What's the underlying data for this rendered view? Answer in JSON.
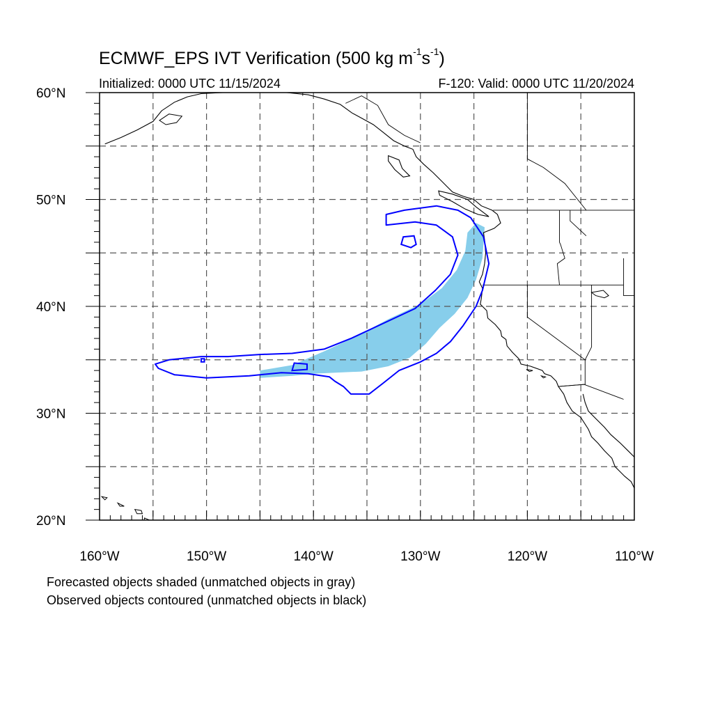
{
  "title": {
    "main": "ECMWF_EPS IVT Verification (500 kg m",
    "exp1": "-1",
    "mid": "s",
    "exp2": "-1",
    "end": ")"
  },
  "subtitle_left": "Initialized: 0000 UTC 11/15/2024",
  "subtitle_right": "F-120: Valid: 0000 UTC 11/20/2024",
  "lat_labels": [
    "20°N",
    "30°N",
    "40°N",
    "50°N",
    "60°N"
  ],
  "lon_labels": [
    "160°W",
    "150°W",
    "140°W",
    "130°W",
    "120°W",
    "110°W"
  ],
  "notes": [
    "Forecasted objects shaded (unmatched objects in gray)",
    "Observed objects contoured (unmatched objects in black)"
  ],
  "colors": {
    "forecast_fill": "#87ceeb",
    "observed_contour": "#0000ff",
    "coastline": "#000000",
    "grid": "#555555"
  },
  "map_data": {
    "extent": {
      "lon": [
        -160,
        -110
      ],
      "lat": [
        20,
        60
      ]
    },
    "grid_lon": [
      -155,
      -150,
      -145,
      -140,
      -135,
      -130,
      -125,
      -120,
      -115
    ],
    "grid_lat": [
      25,
      30,
      35,
      40,
      45,
      50,
      55
    ],
    "forecast_object": [
      [
        -145,
        34
      ],
      [
        -142,
        34.5
      ],
      [
        -139,
        35.8
      ],
      [
        -136,
        37.2
      ],
      [
        -133,
        38.8
      ],
      [
        -130,
        40.2
      ],
      [
        -128,
        41.7
      ],
      [
        -126.6,
        43.4
      ],
      [
        -125.8,
        45.2
      ],
      [
        -125.6,
        46.9
      ],
      [
        -124.8,
        47.8
      ],
      [
        -124,
        47.4
      ],
      [
        -124.2,
        44.5
      ],
      [
        -124.8,
        42.5
      ],
      [
        -125.6,
        40.8
      ],
      [
        -126.8,
        39.3
      ],
      [
        -128.2,
        38.0
      ],
      [
        -129.5,
        36.5
      ],
      [
        -131,
        35.2
      ],
      [
        -133,
        34.4
      ],
      [
        -135.5,
        33.9
      ],
      [
        -138,
        33.8
      ],
      [
        -140,
        33.7
      ],
      [
        -142,
        33.5
      ],
      [
        -145,
        33.3
      ]
    ],
    "observed_object": [
      [
        -154.8,
        34.6
      ],
      [
        -153.5,
        35.0
      ],
      [
        -150.5,
        35.3
      ],
      [
        -148,
        35.3
      ],
      [
        -145,
        35.5
      ],
      [
        -142,
        35.6
      ],
      [
        -139,
        36.0
      ],
      [
        -136.5,
        37.0
      ],
      [
        -133.5,
        38.4
      ],
      [
        -130.5,
        39.8
      ],
      [
        -128.6,
        41.5
      ],
      [
        -127.2,
        43.0
      ],
      [
        -126.5,
        44.8
      ],
      [
        -127,
        46.5
      ],
      [
        -128.5,
        47.6
      ],
      [
        -130.5,
        47.9
      ],
      [
        -133.2,
        47.6
      ],
      [
        -133.2,
        48.6
      ],
      [
        -131.5,
        49.0
      ],
      [
        -128.5,
        49.4
      ],
      [
        -126.5,
        49.0
      ],
      [
        -125.3,
        48.3
      ],
      [
        -124.1,
        46.5
      ],
      [
        -123.6,
        44.0
      ],
      [
        -124.2,
        41.5
      ],
      [
        -124.8,
        40.0
      ],
      [
        -126.0,
        38.2
      ],
      [
        -127.2,
        36.7
      ],
      [
        -128.5,
        35.6
      ],
      [
        -130,
        34.8
      ],
      [
        -132,
        34.0
      ],
      [
        -133.5,
        32.8
      ],
      [
        -134.8,
        31.8
      ],
      [
        -136.5,
        31.8
      ],
      [
        -137.2,
        32.5
      ],
      [
        -138,
        33.0
      ],
      [
        -138.5,
        33.4
      ],
      [
        -140.5,
        33.7
      ],
      [
        -143,
        33.8
      ],
      [
        -146,
        33.5
      ],
      [
        -150,
        33.3
      ],
      [
        -153,
        33.6
      ],
      [
        -154.5,
        34.2
      ]
    ],
    "observed_inner_1": [
      [
        -130.9,
        45.5
      ],
      [
        -131.8,
        45.8
      ],
      [
        -131.6,
        46.5
      ],
      [
        -130.6,
        46.6
      ],
      [
        -130.4,
        45.8
      ]
    ],
    "observed_inner_2": [
      [
        -142,
        34.0
      ],
      [
        -140.6,
        34.1
      ],
      [
        -140.6,
        34.6
      ],
      [
        -141.8,
        34.7
      ]
    ],
    "observed_inner_3": [
      [
        -150.5,
        34.8
      ],
      [
        -150.2,
        34.8
      ],
      [
        -150.2,
        35.1
      ],
      [
        -150.5,
        35.1
      ]
    ],
    "coastline": [
      [
        -159.5,
        55.2
      ],
      [
        -158,
        55.8
      ],
      [
        -156.5,
        56.5
      ],
      [
        -155,
        57.3
      ],
      [
        -154.2,
        58.3
      ],
      [
        -153,
        59.1
      ],
      [
        -151.8,
        59.6
      ],
      [
        -150.5,
        59.9
      ],
      [
        -148.5,
        60.0
      ],
      [
        -146.5,
        60.5
      ],
      [
        -144.5,
        60.3
      ],
      [
        -142.5,
        60.0
      ],
      [
        -140.5,
        59.8
      ],
      [
        -139,
        59.4
      ],
      [
        -137.5,
        58.9
      ],
      [
        -136.4,
        58.1
      ],
      [
        -135.3,
        57.5
      ],
      [
        -134.4,
        57.0
      ],
      [
        -133.5,
        56.3
      ],
      [
        -132.5,
        55.5
      ],
      [
        -131.5,
        55.0
      ],
      [
        -130.7,
        54.7
      ],
      [
        -130.4,
        54.0
      ],
      [
        -129.7,
        53.3
      ],
      [
        -128.8,
        52.5
      ],
      [
        -128.1,
        51.8
      ],
      [
        -127.5,
        51.2
      ],
      [
        -127.0,
        50.7
      ],
      [
        -126.0,
        50.3
      ],
      [
        -125.0,
        50.0
      ],
      [
        -124.3,
        49.4
      ],
      [
        -123.3,
        49.0
      ],
      [
        -122.8,
        48.6
      ],
      [
        -122.5,
        47.8
      ],
      [
        -123.1,
        47.3
      ],
      [
        -124.1,
        46.9
      ],
      [
        -124.0,
        46.2
      ],
      [
        -123.9,
        45.0
      ],
      [
        -124.0,
        44.0
      ],
      [
        -124.2,
        43.0
      ],
      [
        -124.5,
        42.3
      ],
      [
        -124.2,
        41.7
      ],
      [
        -124.3,
        40.8
      ],
      [
        -124.4,
        40.2
      ],
      [
        -123.8,
        39.6
      ],
      [
        -123.7,
        38.9
      ],
      [
        -123.0,
        38.3
      ],
      [
        -122.5,
        37.7
      ],
      [
        -122.4,
        37.2
      ],
      [
        -122.0,
        36.9
      ],
      [
        -121.9,
        36.3
      ],
      [
        -121.4,
        35.7
      ],
      [
        -120.8,
        35.1
      ],
      [
        -120.6,
        34.6
      ],
      [
        -119.7,
        34.4
      ],
      [
        -118.6,
        34.0
      ],
      [
        -118.4,
        33.7
      ],
      [
        -117.8,
        33.5
      ],
      [
        -117.3,
        33.0
      ],
      [
        -117.1,
        32.5
      ],
      [
        -116.6,
        31.8
      ],
      [
        -116.3,
        31.0
      ],
      [
        -115.8,
        30.2
      ],
      [
        -115.0,
        29.6
      ],
      [
        -114.3,
        28.5
      ],
      [
        -114.0,
        27.8
      ],
      [
        -113.4,
        27.2
      ],
      [
        -112.8,
        26.5
      ],
      [
        -112.1,
        25.8
      ],
      [
        -111.8,
        25.0
      ],
      [
        -110.9,
        24.1
      ],
      [
        -110.3,
        23.6
      ],
      [
        -110.0,
        23.0
      ]
    ],
    "gulf_coast": [
      [
        -114.8,
        31.8
      ],
      [
        -114.6,
        31.0
      ],
      [
        -114.3,
        30.2
      ],
      [
        -113.6,
        29.5
      ],
      [
        -112.8,
        28.7
      ],
      [
        -112.2,
        28.0
      ],
      [
        -111.3,
        27.2
      ],
      [
        -110.6,
        26.5
      ],
      [
        -110.0,
        25.9
      ]
    ],
    "vancouver_island": [
      [
        -128.3,
        50.8
      ],
      [
        -127.0,
        50.5
      ],
      [
        -125.6,
        50.0
      ],
      [
        -124.8,
        49.3
      ],
      [
        -123.6,
        48.4
      ],
      [
        -124.6,
        48.6
      ],
      [
        -125.8,
        49.1
      ],
      [
        -127.0,
        49.8
      ],
      [
        -128.2,
        50.4
      ],
      [
        -128.3,
        50.8
      ]
    ],
    "haida_gwaii": [
      [
        -133.0,
        54.1
      ],
      [
        -132.0,
        53.7
      ],
      [
        -131.7,
        52.9
      ],
      [
        -131.0,
        52.2
      ],
      [
        -131.6,
        52.1
      ],
      [
        -132.4,
        52.8
      ],
      [
        -133.0,
        53.6
      ],
      [
        -133.0,
        54.1
      ]
    ],
    "islands": [
      [
        [
          -155.8,
          20.2
        ],
        [
          -155.1,
          19.9
        ],
        [
          -154.9,
          19.5
        ],
        [
          -155.6,
          19.3
        ],
        [
          -155.9,
          19.6
        ],
        [
          -155.8,
          20.2
        ]
      ],
      [
        [
          -156.7,
          21.0
        ],
        [
          -156.1,
          20.9
        ],
        [
          -156.0,
          20.6
        ],
        [
          -156.5,
          20.6
        ],
        [
          -156.7,
          21.0
        ]
      ],
      [
        [
          -158.3,
          21.6
        ],
        [
          -157.7,
          21.3
        ],
        [
          -158.1,
          21.3
        ],
        [
          -158.3,
          21.6
        ]
      ],
      [
        [
          -159.8,
          22.2
        ],
        [
          -159.3,
          22.1
        ],
        [
          -159.5,
          21.9
        ],
        [
          -159.8,
          22.2
        ]
      ],
      [
        [
          -153.5,
          58.0
        ],
        [
          -152.3,
          57.8
        ],
        [
          -152.8,
          57.2
        ],
        [
          -153.8,
          57.0
        ],
        [
          -154.4,
          57.4
        ],
        [
          -153.5,
          58.0
        ]
      ],
      [
        [
          -114.0,
          41.3
        ],
        [
          -112.9,
          41.5
        ],
        [
          -112.4,
          41.0
        ],
        [
          -112.8,
          40.8
        ],
        [
          -113.6,
          41.0
        ],
        [
          -114.0,
          41.3
        ]
      ],
      [
        [
          -118.7,
          33.5
        ],
        [
          -118.3,
          33.4
        ],
        [
          -118.5,
          33.3
        ],
        [
          -118.7,
          33.5
        ]
      ],
      [
        [
          -120.1,
          34.1
        ],
        [
          -119.5,
          34.0
        ],
        [
          -119.8,
          33.9
        ],
        [
          -120.1,
          34.1
        ]
      ]
    ],
    "borders": [
      [
        [
          -123.2,
          49.0
        ],
        [
          -110,
          49.0
        ]
      ],
      [
        [
          -124.2,
          42.0
        ],
        [
          -111,
          42.0
        ]
      ],
      [
        [
          -111,
          42.0
        ],
        [
          -111,
          41.0
        ],
        [
          -110,
          41.0
        ]
      ],
      [
        [
          -120.0,
          42.0
        ],
        [
          -120.0,
          39.0
        ],
        [
          -114.6,
          35.0
        ],
        [
          -114.6,
          32.7
        ],
        [
          -117.1,
          32.5
        ]
      ],
      [
        [
          -117.1,
          32.5
        ],
        [
          -114.7,
          32.7
        ],
        [
          -111.0,
          31.3
        ]
      ],
      [
        [
          -114.6,
          35.0
        ],
        [
          -114.0,
          36.2
        ],
        [
          -114.0,
          37.0
        ],
        [
          -114.0,
          42.0
        ]
      ],
      [
        [
          -117.0,
          49.0
        ],
        [
          -117.0,
          46.0
        ],
        [
          -116.9,
          45.8
        ],
        [
          -116.5,
          44.5
        ],
        [
          -117.2,
          44.0
        ],
        [
          -117.0,
          42.0
        ]
      ],
      [
        [
          -111.0,
          44.5
        ],
        [
          -111.0,
          42.0
        ]
      ],
      [
        [
          -114.5,
          46.6
        ],
        [
          -116.0,
          48.0
        ],
        [
          -116.0,
          49.0
        ]
      ],
      [
        [
          -141.0,
          60.0
        ],
        [
          -141.0,
          59.7
        ]
      ],
      [
        [
          -137.0,
          59.0
        ],
        [
          -135.5,
          59.7
        ],
        [
          -134.0,
          58.8
        ],
        [
          -133.0,
          57.0
        ],
        [
          -131.5,
          56.0
        ],
        [
          -130.0,
          55.3
        ]
      ],
      [
        [
          -120.0,
          60.0
        ],
        [
          -120.0,
          53.8
        ],
        [
          -118.5,
          53.0
        ],
        [
          -116.5,
          51.5
        ],
        [
          -114.5,
          49.0
        ]
      ],
      [
        [
          -110.0,
          60.0
        ],
        [
          -110.0,
          49.0
        ]
      ]
    ]
  }
}
